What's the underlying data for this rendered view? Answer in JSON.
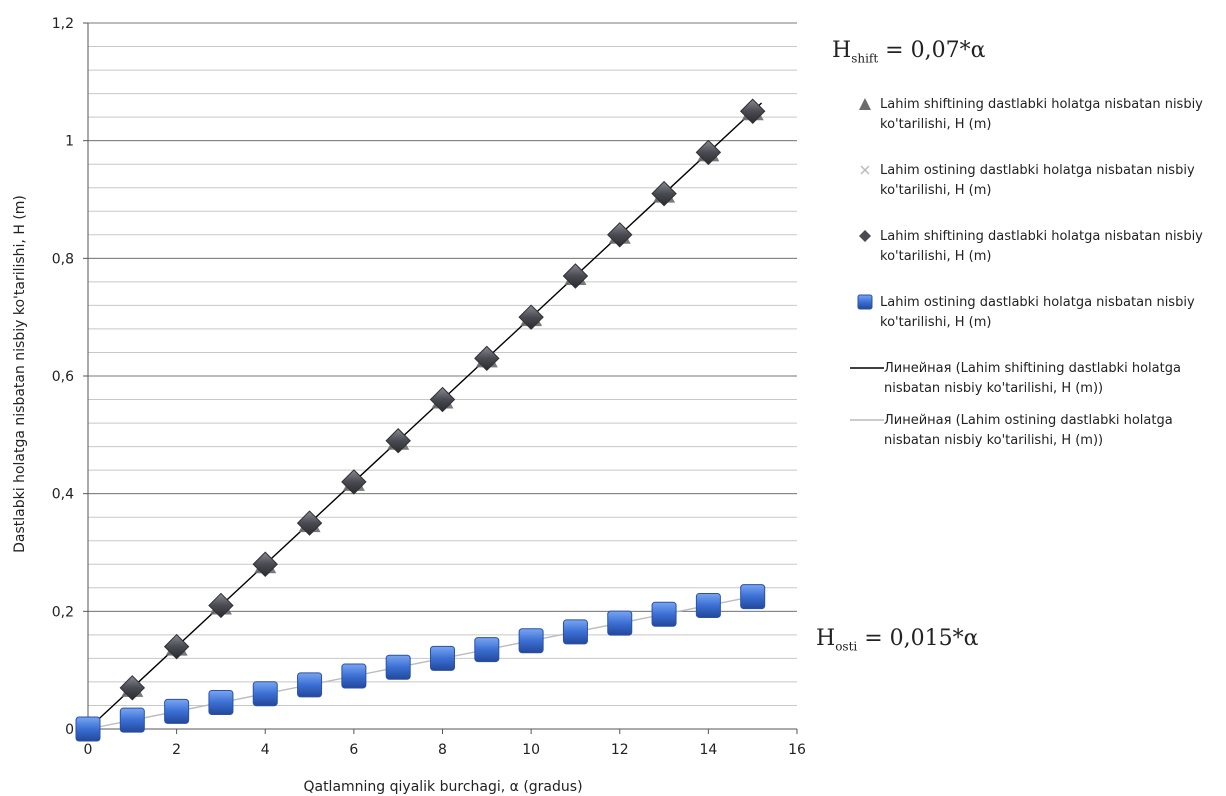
{
  "chart_data": {
    "type": "scatter",
    "x": [
      0,
      1,
      2,
      3,
      4,
      5,
      6,
      7,
      8,
      9,
      10,
      11,
      12,
      13,
      14,
      15
    ],
    "series": [
      {
        "name": "Lahim shiftining dastlabki holatga nisbatan nisbiy ko'tarilishi, H (m)",
        "marker": "triangle",
        "color": "#6b6b6b",
        "values": [
          0,
          0.07,
          0.14,
          0.21,
          0.28,
          0.35,
          0.42,
          0.49,
          0.56,
          0.63,
          0.7,
          0.77,
          0.84,
          0.91,
          0.98,
          1.05
        ]
      },
      {
        "name": "Lahim ostining dastlabki holatga nisbatan nisbiy ko'tarilishi, H (m)",
        "marker": "x",
        "color": "#aaaaaa",
        "values": [
          0,
          0.015,
          0.03,
          0.045,
          0.06,
          0.075,
          0.09,
          0.105,
          0.12,
          0.135,
          0.15,
          0.165,
          0.18,
          0.195,
          0.21,
          0.225
        ]
      },
      {
        "name": "Lahim shiftining dastlabki holatga nisbatan nisbiy ko'tarilishi, H (m)",
        "marker": "diamond",
        "color": "#4a4a52",
        "values": [
          0,
          0.07,
          0.14,
          0.21,
          0.28,
          0.35,
          0.42,
          0.49,
          0.56,
          0.63,
          0.7,
          0.77,
          0.84,
          0.91,
          0.98,
          1.05
        ]
      },
      {
        "name": "Lahim ostining dastlabki holatga nisbatan nisbiy ko'tarilishi, H (m)",
        "marker": "square",
        "color": "#3b6fd4",
        "values": [
          0,
          0.015,
          0.03,
          0.045,
          0.06,
          0.075,
          0.09,
          0.105,
          0.12,
          0.135,
          0.15,
          0.165,
          0.18,
          0.195,
          0.21,
          0.225
        ]
      }
    ],
    "trendlines": [
      {
        "name": "Линейная (Lahim shiftining dastlabki holatga nisbatan nisbiy ko'tarilishi, H (m))",
        "slope": 0.07,
        "color": "#000000"
      },
      {
        "name": "Линейная (Lahim ostining dastlabki holatga nisbatan nisbiy ko'tarilishi, H (m))",
        "slope": 0.015,
        "color": "#bbbbbb"
      }
    ],
    "xlabel": "Qatlamning qiyalik burchagi, α (gradus)",
    "ylabel": "Dastlabki holatga nisbatan nisbiy ko'tarilishi, H (m)",
    "xlim": [
      0,
      16
    ],
    "ylim": [
      0,
      1.2
    ],
    "xticks": [
      0,
      2,
      4,
      6,
      8,
      10,
      12,
      14,
      16
    ],
    "xtick_labels": [
      "0",
      "2",
      "4",
      "6",
      "8",
      "10",
      "12",
      "14",
      "16"
    ],
    "yticks": [
      0,
      0.2,
      0.4,
      0.6,
      0.8,
      1,
      1.2
    ],
    "ytick_labels": [
      "0",
      "0,2",
      "0,4",
      "0,6",
      "0,8",
      "1",
      "1,2"
    ],
    "grid": true,
    "legend_position": "right",
    "annotations": {
      "eq_shift_sym": "H",
      "eq_shift_sub": "shift",
      "eq_shift_rest": " = 0,07*α",
      "eq_osti_sym": "H",
      "eq_osti_sub": "osti",
      "eq_osti_rest": " = 0,015*α"
    }
  },
  "legend": {
    "items": [
      {
        "label": "Lahim shiftining dastlabki holatga nisbatan nisbiy ko'tarilishi, H (m)",
        "icon": "triangle-marker"
      },
      {
        "label": "Lahim ostining dastlabki holatga nisbatan nisbiy ko'tarilishi, H (m)",
        "icon": "x-marker"
      },
      {
        "label": "Lahim shiftining dastlabki holatga nisbatan nisbiy ko'tarilishi, H (m)",
        "icon": "diamond-marker"
      },
      {
        "label": "Lahim ostining dastlabki holatga nisbatan nisbiy ko'tarilishi, H (m)",
        "icon": "square-marker"
      },
      {
        "label": "Линейная (Lahim shiftining dastlabki holatga nisbatan nisbiy ko'tarilishi, H (m))",
        "icon": "black-line"
      },
      {
        "label": "Линейная (Lahim ostining dastlabki holatga nisbatan nisbiy ko'tarilishi, H (m))",
        "icon": "gray-line"
      }
    ]
  }
}
